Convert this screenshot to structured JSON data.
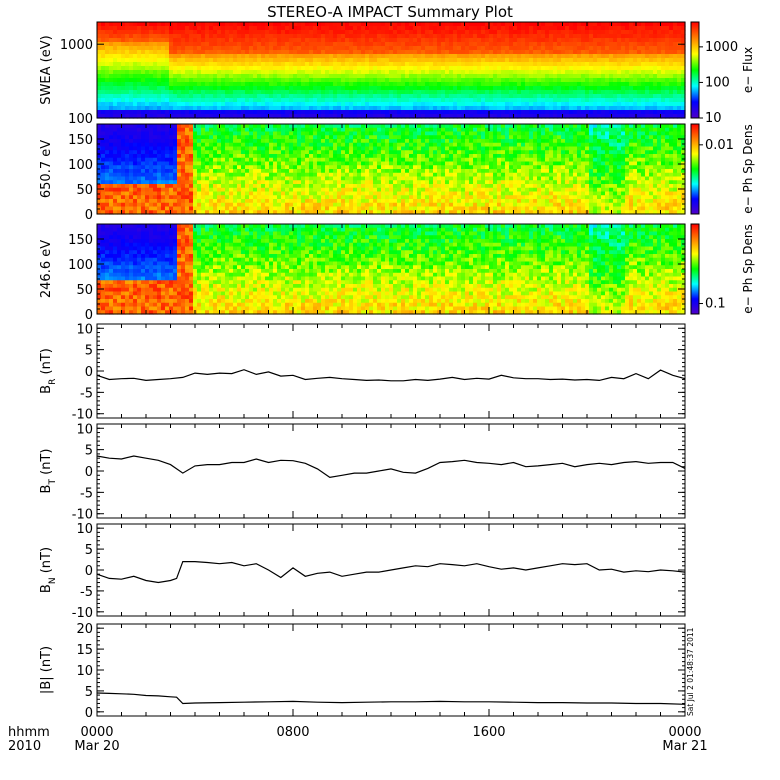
{
  "title": "STEREO-A IMPACT Summary Plot",
  "footer": {
    "hhmm": "hhmm",
    "year": "2010"
  },
  "timestamp": "Sat Jul  2 01:48:37 2011",
  "x_axis": {
    "ticks": [
      {
        "label": "0000",
        "sub": "Mar 20",
        "hour": 0
      },
      {
        "label": "0800",
        "sub": "",
        "hour": 8
      },
      {
        "label": "1600",
        "sub": "",
        "hour": 16
      },
      {
        "label": "0000",
        "sub": "Mar 21",
        "hour": 24
      }
    ],
    "range_hours": [
      0,
      24
    ]
  },
  "colors": {
    "spectrogram_scale": [
      "#5000c8",
      "#0000ff",
      "#00ffff",
      "#00ff00",
      "#ffff00",
      "#ff8000",
      "#ff0000"
    ],
    "line": "#000000",
    "frame": "#000000"
  },
  "chart_data": [
    {
      "type": "heatmap",
      "name": "swea-panel",
      "ylabel": "SWEA (eV)",
      "yscale": "log",
      "ylim": [
        100,
        2000
      ],
      "yticks": [
        {
          "v": 100,
          "label": "100"
        },
        {
          "v": 1000,
          "label": "1000"
        }
      ],
      "colorbar": {
        "label": "e− Flux",
        "scale": "log",
        "ticks": [
          "10",
          "100",
          "1000"
        ],
        "tick_values": [
          10,
          100,
          1000
        ],
        "range": [
          10,
          5000
        ]
      },
      "transition_hour": 2.9,
      "hot_band_top_before_ev": [
        100,
        180
      ],
      "hot_band_top_after_ev": [
        100,
        260
      ]
    },
    {
      "type": "heatmap",
      "name": "pad-650-panel",
      "ylabel": "650.7 eV",
      "ylim": [
        0,
        180
      ],
      "yticks": [
        0,
        50,
        100,
        150
      ],
      "colorbar": {
        "label": "e− Ph Sp Dens",
        "scale": "log",
        "ticks": [
          "0.01"
        ],
        "tick_values": [
          0.01
        ],
        "range": [
          0.001,
          0.02
        ]
      },
      "depletion_end_hour": 3.3,
      "depletion_below_deg": 120
    },
    {
      "type": "heatmap",
      "name": "pad-246-panel",
      "ylabel": "246.6 eV",
      "ylim": [
        0,
        180
      ],
      "yticks": [
        0,
        50,
        100,
        150
      ],
      "colorbar": {
        "label": "e− Ph Sp Dens",
        "scale": "log",
        "ticks": [
          "0.1"
        ],
        "tick_values": [
          0.1
        ],
        "range": [
          0.07,
          1.5
        ]
      },
      "depletion_end_hour": 3.3,
      "depletion_below_deg": 110
    },
    {
      "type": "line",
      "name": "br-panel",
      "ylabel": "B_R (nT)",
      "ylim": [
        -11,
        11
      ],
      "yticks": [
        -10,
        -5,
        0,
        5,
        10
      ],
      "x": [
        0,
        0.5,
        1,
        1.5,
        2,
        2.5,
        3,
        3.5,
        4,
        4.5,
        5,
        5.5,
        6,
        6.5,
        7,
        7.5,
        8,
        8.5,
        9,
        9.5,
        10,
        10.5,
        11,
        11.5,
        12,
        12.5,
        13,
        13.5,
        14,
        14.5,
        15,
        15.5,
        16,
        16.5,
        17,
        17.5,
        18,
        18.5,
        19,
        19.5,
        20,
        20.5,
        21,
        21.5,
        22,
        22.5,
        23,
        23.5,
        24
      ],
      "y": [
        -1,
        -2,
        -1.8,
        -1.7,
        -2.2,
        -2,
        -1.8,
        -1.5,
        -0.5,
        -0.8,
        -0.5,
        -0.6,
        0.3,
        -0.8,
        -0.2,
        -1.2,
        -1,
        -2,
        -1.7,
        -1.5,
        -1.8,
        -2,
        -2.2,
        -2.1,
        -2.3,
        -2.3,
        -2,
        -2.2,
        -1.9,
        -1.5,
        -2,
        -1.7,
        -1.9,
        -1,
        -1.6,
        -1.8,
        -1.8,
        -2,
        -1.9,
        -2.1,
        -2,
        -2.2,
        -1.5,
        -1.8,
        -0.6,
        -1.8,
        0.2,
        -1,
        -1.8
      ]
    },
    {
      "type": "line",
      "name": "bt-panel",
      "ylabel": "B_T (nT)",
      "ylim": [
        -11,
        11
      ],
      "yticks": [
        -10,
        -5,
        0,
        5,
        10
      ],
      "x": [
        0,
        0.5,
        1,
        1.5,
        2,
        2.5,
        3,
        3.5,
        4,
        4.5,
        5,
        5.5,
        6,
        6.5,
        7,
        7.5,
        8,
        8.5,
        9,
        9.5,
        10,
        10.5,
        11,
        11.5,
        12,
        12.5,
        13,
        13.5,
        14,
        14.5,
        15,
        15.5,
        16,
        16.5,
        17,
        17.5,
        18,
        18.5,
        19,
        19.5,
        20,
        20.5,
        21,
        21.5,
        22,
        22.5,
        23,
        23.5,
        24
      ],
      "y": [
        3.5,
        3,
        2.8,
        3.5,
        3,
        2.5,
        1.5,
        -0.5,
        1.2,
        1.5,
        1.5,
        2,
        2,
        2.8,
        2,
        2.5,
        2.4,
        1.8,
        0.5,
        -1.5,
        -1,
        -0.5,
        -0.5,
        0,
        0.5,
        -0.3,
        -0.5,
        0.6,
        2,
        2.2,
        2.5,
        2,
        1.8,
        1.5,
        2,
        1,
        1.2,
        1.5,
        1.8,
        1,
        1.5,
        1.8,
        1.5,
        2,
        2.2,
        1.8,
        2,
        2,
        0.6
      ]
    },
    {
      "type": "line",
      "name": "bn-panel",
      "ylabel": "B_N (nT)",
      "ylim": [
        -11,
        11
      ],
      "yticks": [
        -10,
        -5,
        0,
        5,
        10
      ],
      "x": [
        0,
        0.5,
        1,
        1.5,
        2,
        2.5,
        3,
        3.25,
        3.5,
        4,
        4.5,
        5,
        5.5,
        6,
        6.5,
        7,
        7.5,
        8,
        8.5,
        9,
        9.5,
        10,
        10.5,
        11,
        11.5,
        12,
        12.5,
        13,
        13.5,
        14,
        14.5,
        15,
        15.5,
        16,
        16.5,
        17,
        17.5,
        18,
        18.5,
        19,
        19.5,
        20,
        20.5,
        21,
        21.5,
        22,
        22.5,
        23,
        23.5,
        24
      ],
      "y": [
        -1,
        -2,
        -2.2,
        -1.5,
        -2.5,
        -3,
        -2.5,
        -2,
        2,
        2,
        1.8,
        1.5,
        1.8,
        1,
        1.5,
        0,
        -1.8,
        0.5,
        -1.5,
        -0.8,
        -0.5,
        -1.5,
        -1,
        -0.5,
        -0.5,
        0,
        0.5,
        1,
        0.8,
        1.5,
        1.3,
        1,
        1.5,
        0.8,
        0.2,
        0.5,
        0,
        0.5,
        1,
        1.5,
        1.3,
        1.5,
        0,
        0.2,
        -0.5,
        -0.2,
        -0.4,
        0,
        -0.2,
        -0.5
      ]
    },
    {
      "type": "line",
      "name": "bmag-panel",
      "ylabel": "|B| (nT)",
      "ylim": [
        -1,
        21
      ],
      "yticks": [
        0,
        5,
        10,
        15,
        20
      ],
      "x": [
        0,
        0.5,
        1,
        1.5,
        2,
        2.5,
        3,
        3.25,
        3.5,
        4,
        5,
        6,
        7,
        8,
        9,
        10,
        11,
        12,
        13,
        14,
        15,
        16,
        17,
        18,
        19,
        20,
        21,
        22,
        23,
        24
      ],
      "y": [
        4.5,
        4.4,
        4.3,
        4.2,
        3.9,
        3.8,
        3.6,
        3.5,
        2,
        2.1,
        2.2,
        2.3,
        2.4,
        2.5,
        2.3,
        2.2,
        2.3,
        2.4,
        2.4,
        2.5,
        2.4,
        2.4,
        2.3,
        2.2,
        2.2,
        2.1,
        2.1,
        2,
        2,
        1.8
      ]
    }
  ]
}
